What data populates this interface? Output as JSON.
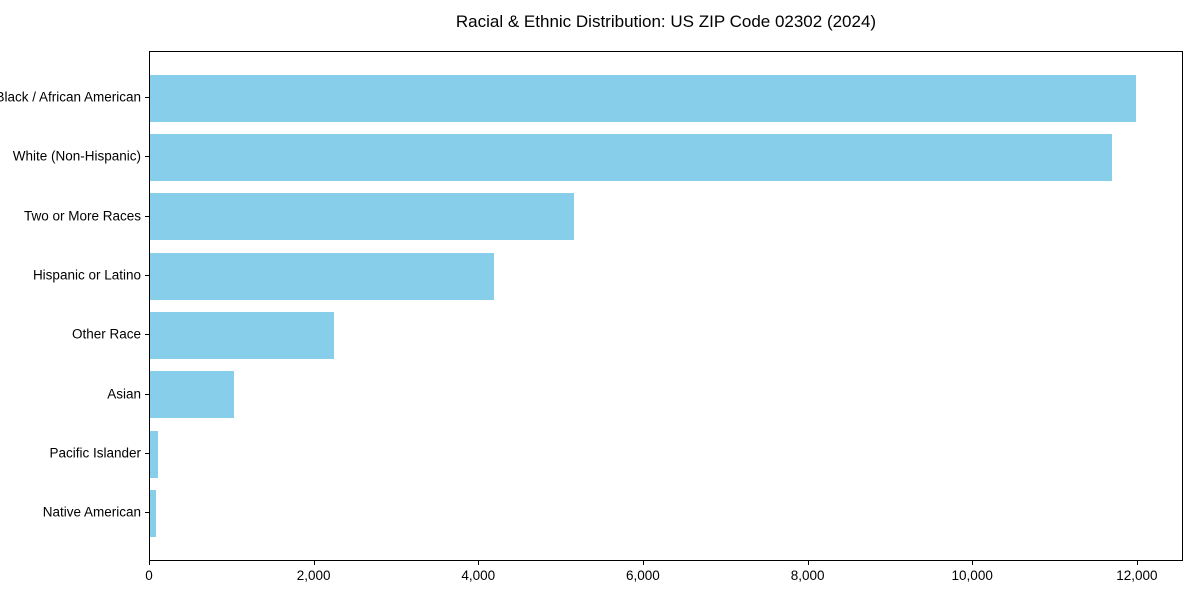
{
  "title": "Racial & Ethnic Distribution: US ZIP Code 02302 (2024)",
  "chart_data": {
    "type": "bar",
    "orientation": "horizontal",
    "title": "Racial & Ethnic Distribution: US ZIP Code 02302 (2024)",
    "categories": [
      "Black / African American",
      "White (Non-Hispanic)",
      "Two or More Races",
      "Hispanic or Latino",
      "Other Race",
      "Asian",
      "Pacific Islander",
      "Native American"
    ],
    "values": [
      11980,
      11680,
      5150,
      4180,
      2230,
      1020,
      100,
      75
    ],
    "xlabel": "",
    "ylabel": "",
    "xlim": [
      0,
      12560
    ],
    "xticks": [
      0,
      2000,
      4000,
      6000,
      8000,
      10000,
      12000
    ],
    "xtick_labels": [
      "0",
      "2,000",
      "4,000",
      "6,000",
      "8,000",
      "10,000",
      "12,000"
    ],
    "bar_color": "#87CEEB",
    "axis_color": "#000000",
    "text_color": "#000000",
    "background_color": "#ffffff",
    "grid": false,
    "legend": null,
    "sorted": "descending"
  }
}
